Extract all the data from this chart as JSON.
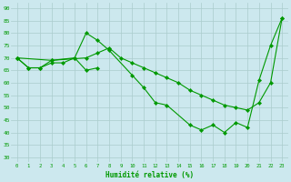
{
  "bg_color": "#cce8ee",
  "grid_color": "#aacccc",
  "line_color": "#009900",
  "xlabel": "Humidité relative (%)",
  "ylabel_ticks": [
    30,
    35,
    40,
    45,
    50,
    55,
    60,
    65,
    70,
    75,
    80,
    85,
    90
  ],
  "xlabels": [
    "0",
    "1",
    "2",
    "3",
    "4",
    "5",
    "6",
    "7",
    "8",
    "9",
    "10",
    "11",
    "12",
    "13",
    "14",
    "15",
    "16",
    "17",
    "18",
    "19",
    "20",
    "21",
    "22",
    "23"
  ],
  "ylim": [
    28,
    92
  ],
  "xlim": [
    -0.5,
    23.5
  ],
  "line1_x": [
    0,
    1,
    2,
    3,
    5,
    6,
    7,
    8,
    10,
    11,
    12,
    13,
    15,
    16,
    17,
    18,
    19,
    20,
    21,
    22,
    23
  ],
  "line1_y": [
    70,
    66,
    66,
    69,
    70,
    80,
    77,
    73,
    63,
    58,
    52,
    51,
    43,
    41,
    43,
    40,
    44,
    42,
    61,
    75,
    86
  ],
  "line2_x": [
    0,
    3,
    6,
    7,
    8,
    9,
    10,
    11,
    12,
    13,
    14,
    15,
    16,
    17,
    18,
    19,
    20,
    21,
    22,
    23
  ],
  "line2_y": [
    70,
    69,
    70,
    72,
    74,
    70,
    68,
    66,
    64,
    62,
    60,
    57,
    55,
    53,
    51,
    50,
    49,
    52,
    60,
    86
  ],
  "line3_x": [
    0,
    1,
    2,
    3,
    4,
    5,
    6,
    7
  ],
  "line3_y": [
    70,
    66,
    66,
    68,
    68,
    70,
    65,
    66
  ]
}
